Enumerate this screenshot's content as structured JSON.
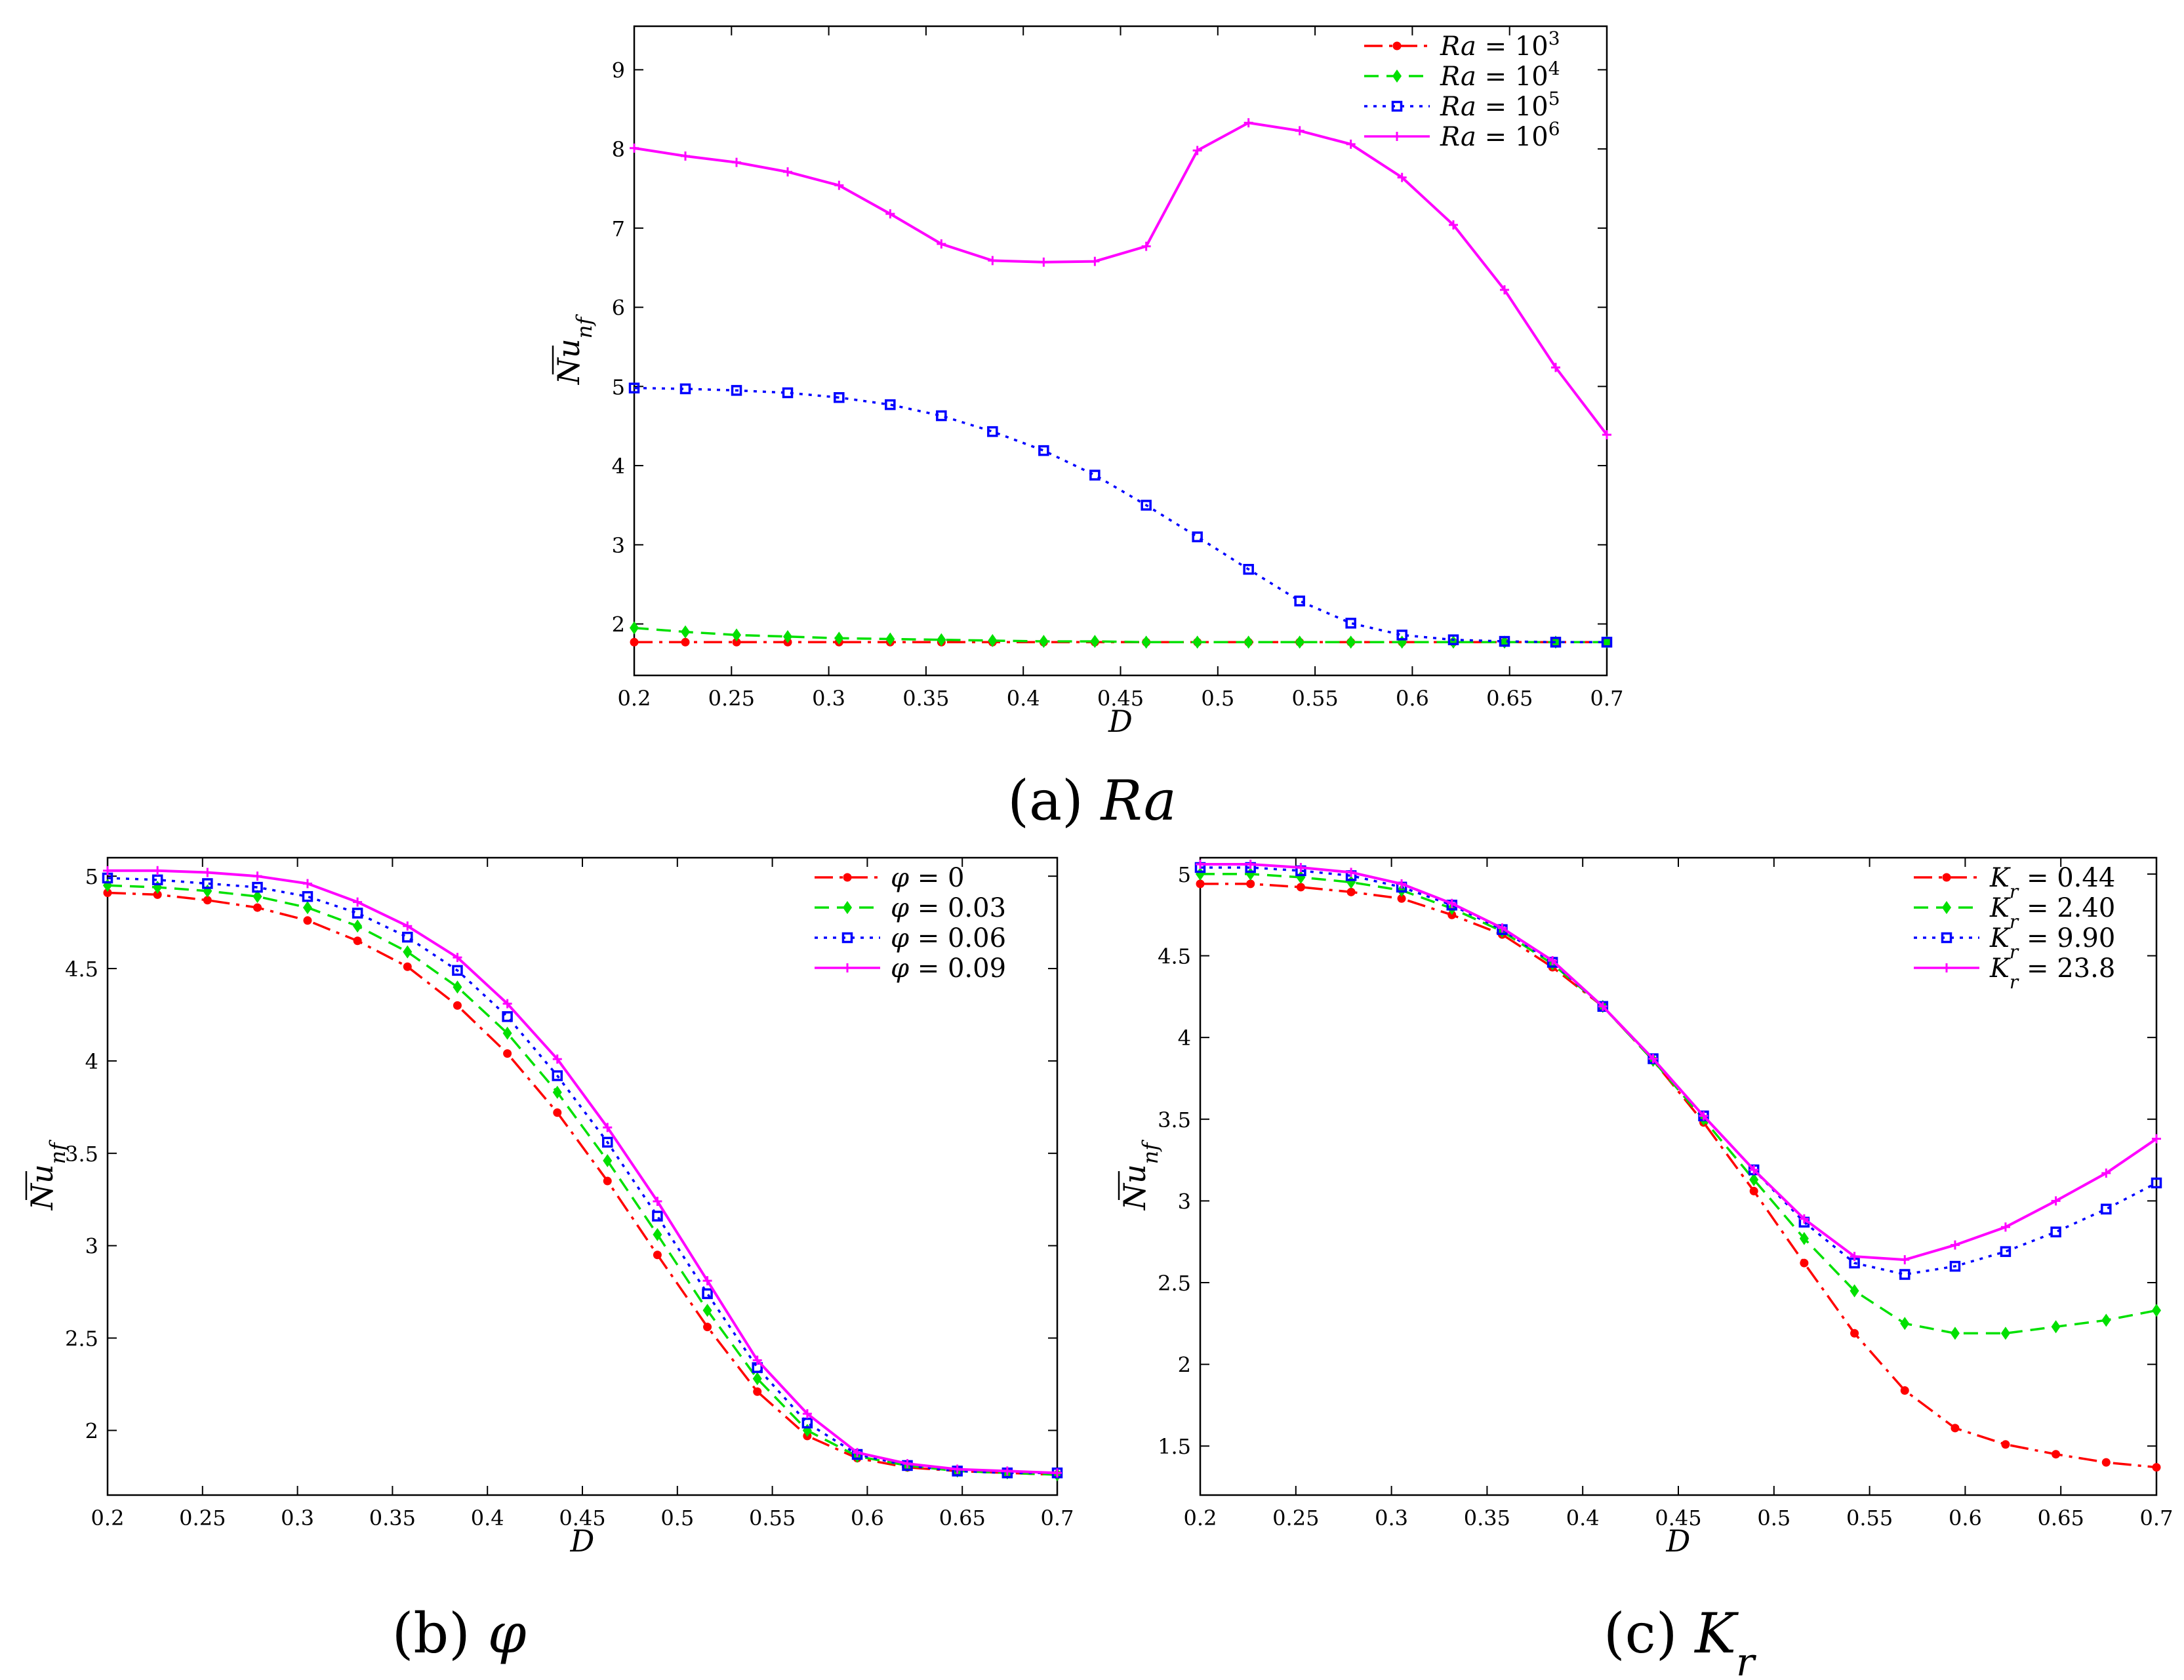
{
  "chart_data": [
    {
      "type": "line",
      "caption": "(a) Ra",
      "xlabel": "D",
      "ylabel": "Nu_nf",
      "xlim": [
        0.2,
        0.7
      ],
      "ylim": [
        1.35,
        9.55
      ],
      "xticks": [
        "0.2",
        "0.25",
        "0.3",
        "0.35",
        "0.4",
        "0.45",
        "0.5",
        "0.55",
        "0.6",
        "0.65",
        "0.7"
      ],
      "yticks": [
        "2",
        "3",
        "4",
        "5",
        "6",
        "7",
        "8",
        "9"
      ],
      "legend_position": "top-right",
      "x": [
        0.2,
        0.2263,
        0.2526,
        0.2789,
        0.3053,
        0.3316,
        0.3579,
        0.3842,
        0.4105,
        0.4368,
        0.4632,
        0.4895,
        0.5158,
        0.5421,
        0.5684,
        0.5947,
        0.6211,
        0.6474,
        0.6737,
        0.7
      ],
      "series": [
        {
          "name": "Ra = 10^3",
          "color": "#ff0000",
          "marker": "dot",
          "dash": "dashdot",
          "values": [
            1.77,
            1.77,
            1.77,
            1.77,
            1.77,
            1.77,
            1.77,
            1.77,
            1.77,
            1.77,
            1.77,
            1.77,
            1.77,
            1.77,
            1.77,
            1.77,
            1.77,
            1.77,
            1.77,
            1.77
          ]
        },
        {
          "name": "Ra = 10^4",
          "color": "#00e000",
          "marker": "diamond",
          "dash": "dashed",
          "values": [
            1.95,
            1.9,
            1.86,
            1.84,
            1.82,
            1.81,
            1.8,
            1.79,
            1.78,
            1.78,
            1.77,
            1.77,
            1.77,
            1.77,
            1.77,
            1.77,
            1.77,
            1.77,
            1.77,
            1.77
          ]
        },
        {
          "name": "Ra = 10^5",
          "color": "#0000ff",
          "marker": "square",
          "dash": "dotted",
          "values": [
            4.98,
            4.97,
            4.95,
            4.92,
            4.86,
            4.77,
            4.63,
            4.43,
            4.19,
            3.88,
            3.5,
            3.1,
            2.69,
            2.29,
            2.01,
            1.86,
            1.8,
            1.78,
            1.77,
            1.77
          ]
        },
        {
          "name": "Ra = 10^6",
          "color": "#ff00ff",
          "marker": "plus",
          "dash": "solid",
          "values": [
            8.01,
            7.91,
            7.83,
            7.71,
            7.54,
            7.18,
            6.8,
            6.59,
            6.57,
            6.58,
            6.77,
            7.98,
            8.33,
            8.23,
            8.06,
            7.64,
            7.04,
            6.22,
            5.24,
            4.39
          ]
        }
      ]
    },
    {
      "type": "line",
      "caption": "(b) φ",
      "xlabel": "D",
      "ylabel": "Nu_nf",
      "xlim": [
        0.2,
        0.7
      ],
      "ylim": [
        1.65,
        5.1
      ],
      "xticks": [
        "0.2",
        "0.25",
        "0.3",
        "0.35",
        "0.4",
        "0.45",
        "0.5",
        "0.55",
        "0.6",
        "0.65",
        "0.7"
      ],
      "yticks": [
        "2",
        "2.5",
        "3",
        "3.5",
        "4",
        "4.5",
        "5"
      ],
      "legend_position": "top-right",
      "x": [
        0.2,
        0.2263,
        0.2526,
        0.2789,
        0.3053,
        0.3316,
        0.3579,
        0.3842,
        0.4105,
        0.4368,
        0.4632,
        0.4895,
        0.5158,
        0.5421,
        0.5684,
        0.5947,
        0.6211,
        0.6474,
        0.6737,
        0.7
      ],
      "series": [
        {
          "name": "φ = 0",
          "color": "#ff0000",
          "marker": "dot",
          "dash": "dashdot",
          "values": [
            4.91,
            4.9,
            4.87,
            4.83,
            4.76,
            4.65,
            4.51,
            4.3,
            4.04,
            3.72,
            3.35,
            2.95,
            2.56,
            2.21,
            1.97,
            1.85,
            1.8,
            1.78,
            1.77,
            1.76
          ]
        },
        {
          "name": "φ = 0.03",
          "color": "#00e000",
          "marker": "diamond",
          "dash": "dashed",
          "values": [
            4.95,
            4.94,
            4.92,
            4.89,
            4.83,
            4.73,
            4.59,
            4.4,
            4.15,
            3.83,
            3.46,
            3.06,
            2.65,
            2.28,
            2.0,
            1.86,
            1.81,
            1.78,
            1.77,
            1.76
          ]
        },
        {
          "name": "φ = 0.06",
          "color": "#0000ff",
          "marker": "square",
          "dash": "dotted",
          "values": [
            4.99,
            4.98,
            4.96,
            4.94,
            4.89,
            4.8,
            4.67,
            4.49,
            4.24,
            3.92,
            3.56,
            3.16,
            2.74,
            2.34,
            2.04,
            1.87,
            1.81,
            1.78,
            1.77,
            1.77
          ]
        },
        {
          "name": "φ = 0.09",
          "color": "#ff00ff",
          "marker": "plus",
          "dash": "solid",
          "values": [
            5.03,
            5.03,
            5.02,
            5.0,
            4.96,
            4.86,
            4.73,
            4.56,
            4.31,
            4.01,
            3.64,
            3.24,
            2.81,
            2.38,
            2.09,
            1.88,
            1.82,
            1.79,
            1.78,
            1.77
          ]
        }
      ]
    },
    {
      "type": "line",
      "caption": "(c) K_r",
      "xlabel": "D",
      "ylabel": "Nu_nf",
      "xlim": [
        0.2,
        0.7
      ],
      "ylim": [
        1.2,
        5.1
      ],
      "xticks": [
        "0.2",
        "0.25",
        "0.3",
        "0.35",
        "0.4",
        "0.45",
        "0.5",
        "0.55",
        "0.6",
        "0.65",
        "0.7"
      ],
      "yticks": [
        "1.5",
        "2",
        "2.5",
        "3",
        "3.5",
        "4",
        "4.5",
        "5"
      ],
      "legend_position": "top-right",
      "x": [
        0.2,
        0.2263,
        0.2526,
        0.2789,
        0.3053,
        0.3316,
        0.3579,
        0.3842,
        0.4105,
        0.4368,
        0.4632,
        0.4895,
        0.5158,
        0.5421,
        0.5684,
        0.5947,
        0.6211,
        0.6474,
        0.6737,
        0.7
      ],
      "series": [
        {
          "name": "K_r = 0.44",
          "color": "#ff0000",
          "marker": "dot",
          "dash": "dashdot",
          "values": [
            4.94,
            4.94,
            4.92,
            4.89,
            4.85,
            4.75,
            4.63,
            4.43,
            4.19,
            3.86,
            3.48,
            3.06,
            2.62,
            2.19,
            1.84,
            1.61,
            1.51,
            1.45,
            1.4,
            1.37
          ]
        },
        {
          "name": "K_r = 2.40",
          "color": "#00e000",
          "marker": "diamond",
          "dash": "dashed",
          "values": [
            5.0,
            5.0,
            4.98,
            4.95,
            4.9,
            4.79,
            4.65,
            4.45,
            4.19,
            3.86,
            3.5,
            3.13,
            2.77,
            2.45,
            2.25,
            2.19,
            2.19,
            2.23,
            2.27,
            2.33
          ]
        },
        {
          "name": "K_r = 9.90",
          "color": "#0000ff",
          "marker": "square",
          "dash": "dotted",
          "values": [
            5.04,
            5.04,
            5.02,
            4.99,
            4.92,
            4.81,
            4.66,
            4.46,
            4.19,
            3.87,
            3.52,
            3.19,
            2.87,
            2.62,
            2.55,
            2.6,
            2.69,
            2.81,
            2.95,
            3.11
          ]
        },
        {
          "name": "K_r = 23.8",
          "color": "#ff00ff",
          "marker": "plus",
          "dash": "solid",
          "values": [
            5.06,
            5.06,
            5.04,
            5.01,
            4.94,
            4.82,
            4.67,
            4.47,
            4.19,
            3.87,
            3.52,
            3.19,
            2.89,
            2.66,
            2.64,
            2.73,
            2.84,
            3.0,
            3.17,
            3.38
          ]
        }
      ]
    }
  ]
}
